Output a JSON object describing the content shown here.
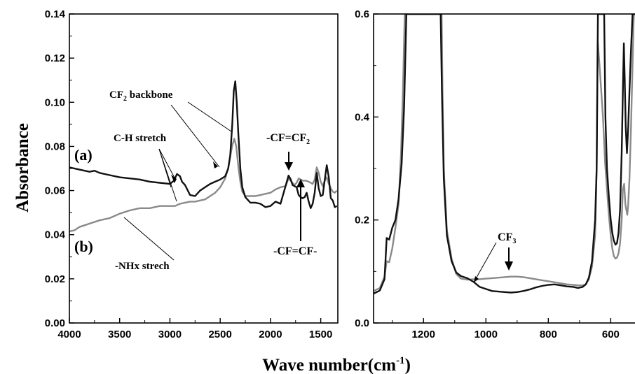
{
  "chart_data": [
    {
      "type": "line",
      "panel": "left",
      "xlabel": "Wave number(cm-1)",
      "ylabel": "Absorbance",
      "xlim": [
        4000,
        1330
      ],
      "ylim": [
        0,
        0.14
      ],
      "xticks": [
        "4000",
        "3500",
        "3000",
        "2500",
        "2000",
        "1500"
      ],
      "xtick_values": [
        4000,
        3500,
        3000,
        2500,
        2000,
        1500
      ],
      "yticks": [
        "0.00",
        "0.02",
        "0.04",
        "0.06",
        "0.08",
        "0.10",
        "0.12",
        "0.14"
      ],
      "ytick_values": [
        0,
        0.02,
        0.04,
        0.06,
        0.08,
        0.1,
        0.12,
        0.14
      ],
      "grid": false,
      "series": [
        {
          "name": "(a)",
          "color": "#111111",
          "x": [
            4000,
            3900,
            3800,
            3750,
            3700,
            3600,
            3500,
            3400,
            3300,
            3200,
            3100,
            3000,
            2960,
            2930,
            2900,
            2880,
            2850,
            2800,
            2750,
            2700,
            2650,
            2600,
            2550,
            2500,
            2450,
            2420,
            2400,
            2380,
            2365,
            2350,
            2335,
            2320,
            2300,
            2280,
            2250,
            2200,
            2150,
            2100,
            2050,
            2000,
            1950,
            1900,
            1850,
            1820,
            1800,
            1780,
            1760,
            1740,
            1720,
            1700,
            1680,
            1660,
            1640,
            1620,
            1600,
            1580,
            1560,
            1540,
            1520,
            1500,
            1480,
            1460,
            1440,
            1420,
            1400,
            1380,
            1360,
            1340
          ],
          "y": [
            0.0705,
            0.0695,
            0.0685,
            0.069,
            0.068,
            0.067,
            0.066,
            0.0655,
            0.065,
            0.064,
            0.0635,
            0.063,
            0.0645,
            0.0675,
            0.0665,
            0.064,
            0.0625,
            0.058,
            0.0575,
            0.06,
            0.0615,
            0.063,
            0.064,
            0.065,
            0.0665,
            0.07,
            0.076,
            0.09,
            0.105,
            0.1095,
            0.1,
            0.086,
            0.07,
            0.0615,
            0.057,
            0.0545,
            0.0545,
            0.054,
            0.0525,
            0.053,
            0.055,
            0.054,
            0.062,
            0.0668,
            0.0652,
            0.0625,
            0.062,
            0.0615,
            0.058,
            0.057,
            0.0565,
            0.057,
            0.059,
            0.055,
            0.052,
            0.054,
            0.059,
            0.068,
            0.061,
            0.0575,
            0.058,
            0.065,
            0.0715,
            0.066,
            0.0565,
            0.0555,
            0.0525,
            0.053
          ]
        },
        {
          "name": "(b)",
          "color": "#8a8a8a",
          "x": [
            4000,
            3950,
            3900,
            3800,
            3700,
            3600,
            3500,
            3400,
            3300,
            3200,
            3100,
            3000,
            2950,
            2900,
            2850,
            2800,
            2750,
            2700,
            2650,
            2600,
            2550,
            2500,
            2450,
            2420,
            2400,
            2380,
            2360,
            2340,
            2320,
            2300,
            2280,
            2250,
            2200,
            2150,
            2100,
            2050,
            2000,
            1950,
            1900,
            1850,
            1820,
            1800,
            1780,
            1760,
            1740,
            1720,
            1700,
            1680,
            1650,
            1620,
            1600,
            1580,
            1560,
            1540,
            1520,
            1500,
            1480,
            1460,
            1440,
            1420,
            1400,
            1380,
            1360,
            1340
          ],
          "y": [
            0.0415,
            0.042,
            0.0435,
            0.045,
            0.0465,
            0.0475,
            0.0495,
            0.051,
            0.052,
            0.052,
            0.053,
            0.053,
            0.053,
            0.054,
            0.0545,
            0.055,
            0.055,
            0.0555,
            0.056,
            0.0575,
            0.059,
            0.0615,
            0.0655,
            0.07,
            0.0755,
            0.0805,
            0.0835,
            0.08,
            0.071,
            0.064,
            0.0595,
            0.0575,
            0.0575,
            0.0575,
            0.058,
            0.0585,
            0.059,
            0.0605,
            0.0615,
            0.062,
            0.0655,
            0.0645,
            0.0635,
            0.0625,
            0.0635,
            0.0655,
            0.065,
            0.0645,
            0.0645,
            0.064,
            0.0635,
            0.063,
            0.065,
            0.0705,
            0.068,
            0.064,
            0.062,
            0.0645,
            0.066,
            0.063,
            0.061,
            0.0595,
            0.059,
            0.06
          ]
        }
      ],
      "annotations": [
        {
          "text": "CF2 backbone",
          "main": "CF",
          "sub": "2",
          "tail": " backbone"
        },
        {
          "text": "C-H stretch"
        },
        {
          "text": "-CF=CF2",
          "main": "-CF=CF",
          "sub": "2"
        },
        {
          "text": "(a)"
        },
        {
          "text": "(b)"
        },
        {
          "text": "-CF=CF-"
        },
        {
          "text": "-NHx  strech"
        }
      ]
    },
    {
      "type": "line",
      "panel": "right",
      "xlabel": "Wave number(cm-1)",
      "ylabel": "",
      "xlim": [
        1360,
        520
      ],
      "ylim": [
        0,
        0.6
      ],
      "xticks": [
        "1200",
        "1000",
        "800",
        "600"
      ],
      "xtick_values": [
        1200,
        1000,
        800,
        600
      ],
      "yticks": [
        "0.0",
        "0.2",
        "0.4",
        "0.6"
      ],
      "ytick_values": [
        0,
        0.2,
        0.4,
        0.6
      ],
      "grid": false,
      "series": [
        {
          "name": "(a)",
          "color": "#111111",
          "x": [
            1360,
            1340,
            1325,
            1318,
            1310,
            1300,
            1290,
            1280,
            1270,
            1262,
            1258,
            1255,
            1145,
            1141,
            1135,
            1125,
            1110,
            1095,
            1080,
            1060,
            1040,
            1020,
            1000,
            980,
            960,
            940,
            920,
            900,
            880,
            860,
            840,
            820,
            800,
            780,
            760,
            740,
            720,
            705,
            690,
            680,
            670,
            660,
            650,
            645,
            641,
            621,
            617,
            612,
            606,
            600,
            595,
            590,
            585,
            580,
            575,
            570,
            565,
            561,
            558,
            555,
            552,
            548,
            544,
            540,
            535,
            530,
            527,
            524,
            520
          ],
          "y": [
            0.057,
            0.063,
            0.085,
            0.165,
            0.162,
            0.185,
            0.2,
            0.24,
            0.31,
            0.42,
            0.52,
            0.6,
            0.6,
            0.45,
            0.28,
            0.17,
            0.12,
            0.098,
            0.091,
            0.087,
            0.08,
            0.07,
            0.066,
            0.062,
            0.061,
            0.06,
            0.059,
            0.06,
            0.062,
            0.065,
            0.069,
            0.072,
            0.074,
            0.075,
            0.073,
            0.071,
            0.07,
            0.068,
            0.07,
            0.075,
            0.088,
            0.12,
            0.2,
            0.3,
            0.6,
            0.6,
            0.4,
            0.3,
            0.245,
            0.2,
            0.175,
            0.16,
            0.152,
            0.155,
            0.175,
            0.22,
            0.33,
            0.45,
            0.543,
            0.47,
            0.38,
            0.33,
            0.38,
            0.45,
            0.53,
            0.6,
            0.6,
            0.6,
            0.6
          ]
        },
        {
          "name": "(b)",
          "color": "#8a8a8a",
          "x": [
            1360,
            1340,
            1325,
            1318,
            1310,
            1300,
            1290,
            1280,
            1272,
            1266,
            1262,
            1260,
            1142,
            1139,
            1135,
            1125,
            1110,
            1095,
            1080,
            1060,
            1040,
            1020,
            1000,
            980,
            960,
            940,
            920,
            900,
            880,
            860,
            840,
            820,
            800,
            780,
            760,
            740,
            720,
            705,
            690,
            680,
            670,
            660,
            650,
            645,
            642,
            636,
            625,
            618,
            612,
            606,
            600,
            595,
            590,
            585,
            580,
            575,
            570,
            565,
            561,
            557,
            553,
            550,
            547,
            544,
            540,
            535,
            530,
            526,
            520
          ],
          "y": [
            0.062,
            0.068,
            0.09,
            0.12,
            0.118,
            0.145,
            0.185,
            0.23,
            0.33,
            0.45,
            0.55,
            0.6,
            0.6,
            0.45,
            0.3,
            0.18,
            0.125,
            0.095,
            0.086,
            0.084,
            0.085,
            0.085,
            0.086,
            0.087,
            0.088,
            0.089,
            0.09,
            0.09,
            0.089,
            0.087,
            0.085,
            0.083,
            0.081,
            0.079,
            0.077,
            0.075,
            0.074,
            0.073,
            0.073,
            0.075,
            0.085,
            0.11,
            0.17,
            0.3,
            0.55,
            0.5,
            0.4,
            0.31,
            0.26,
            0.21,
            0.17,
            0.145,
            0.13,
            0.125,
            0.127,
            0.135,
            0.155,
            0.2,
            0.26,
            0.27,
            0.23,
            0.22,
            0.21,
            0.23,
            0.28,
            0.38,
            0.5,
            0.6,
            0.6
          ]
        }
      ],
      "annotations": [
        {
          "text": "CF3",
          "main": "CF",
          "sub": "3"
        }
      ]
    }
  ],
  "axis_label": {
    "x_main": "Wave number(cm",
    "x_sup": "-1",
    "x_close": ")",
    "y": "Absorbance"
  }
}
